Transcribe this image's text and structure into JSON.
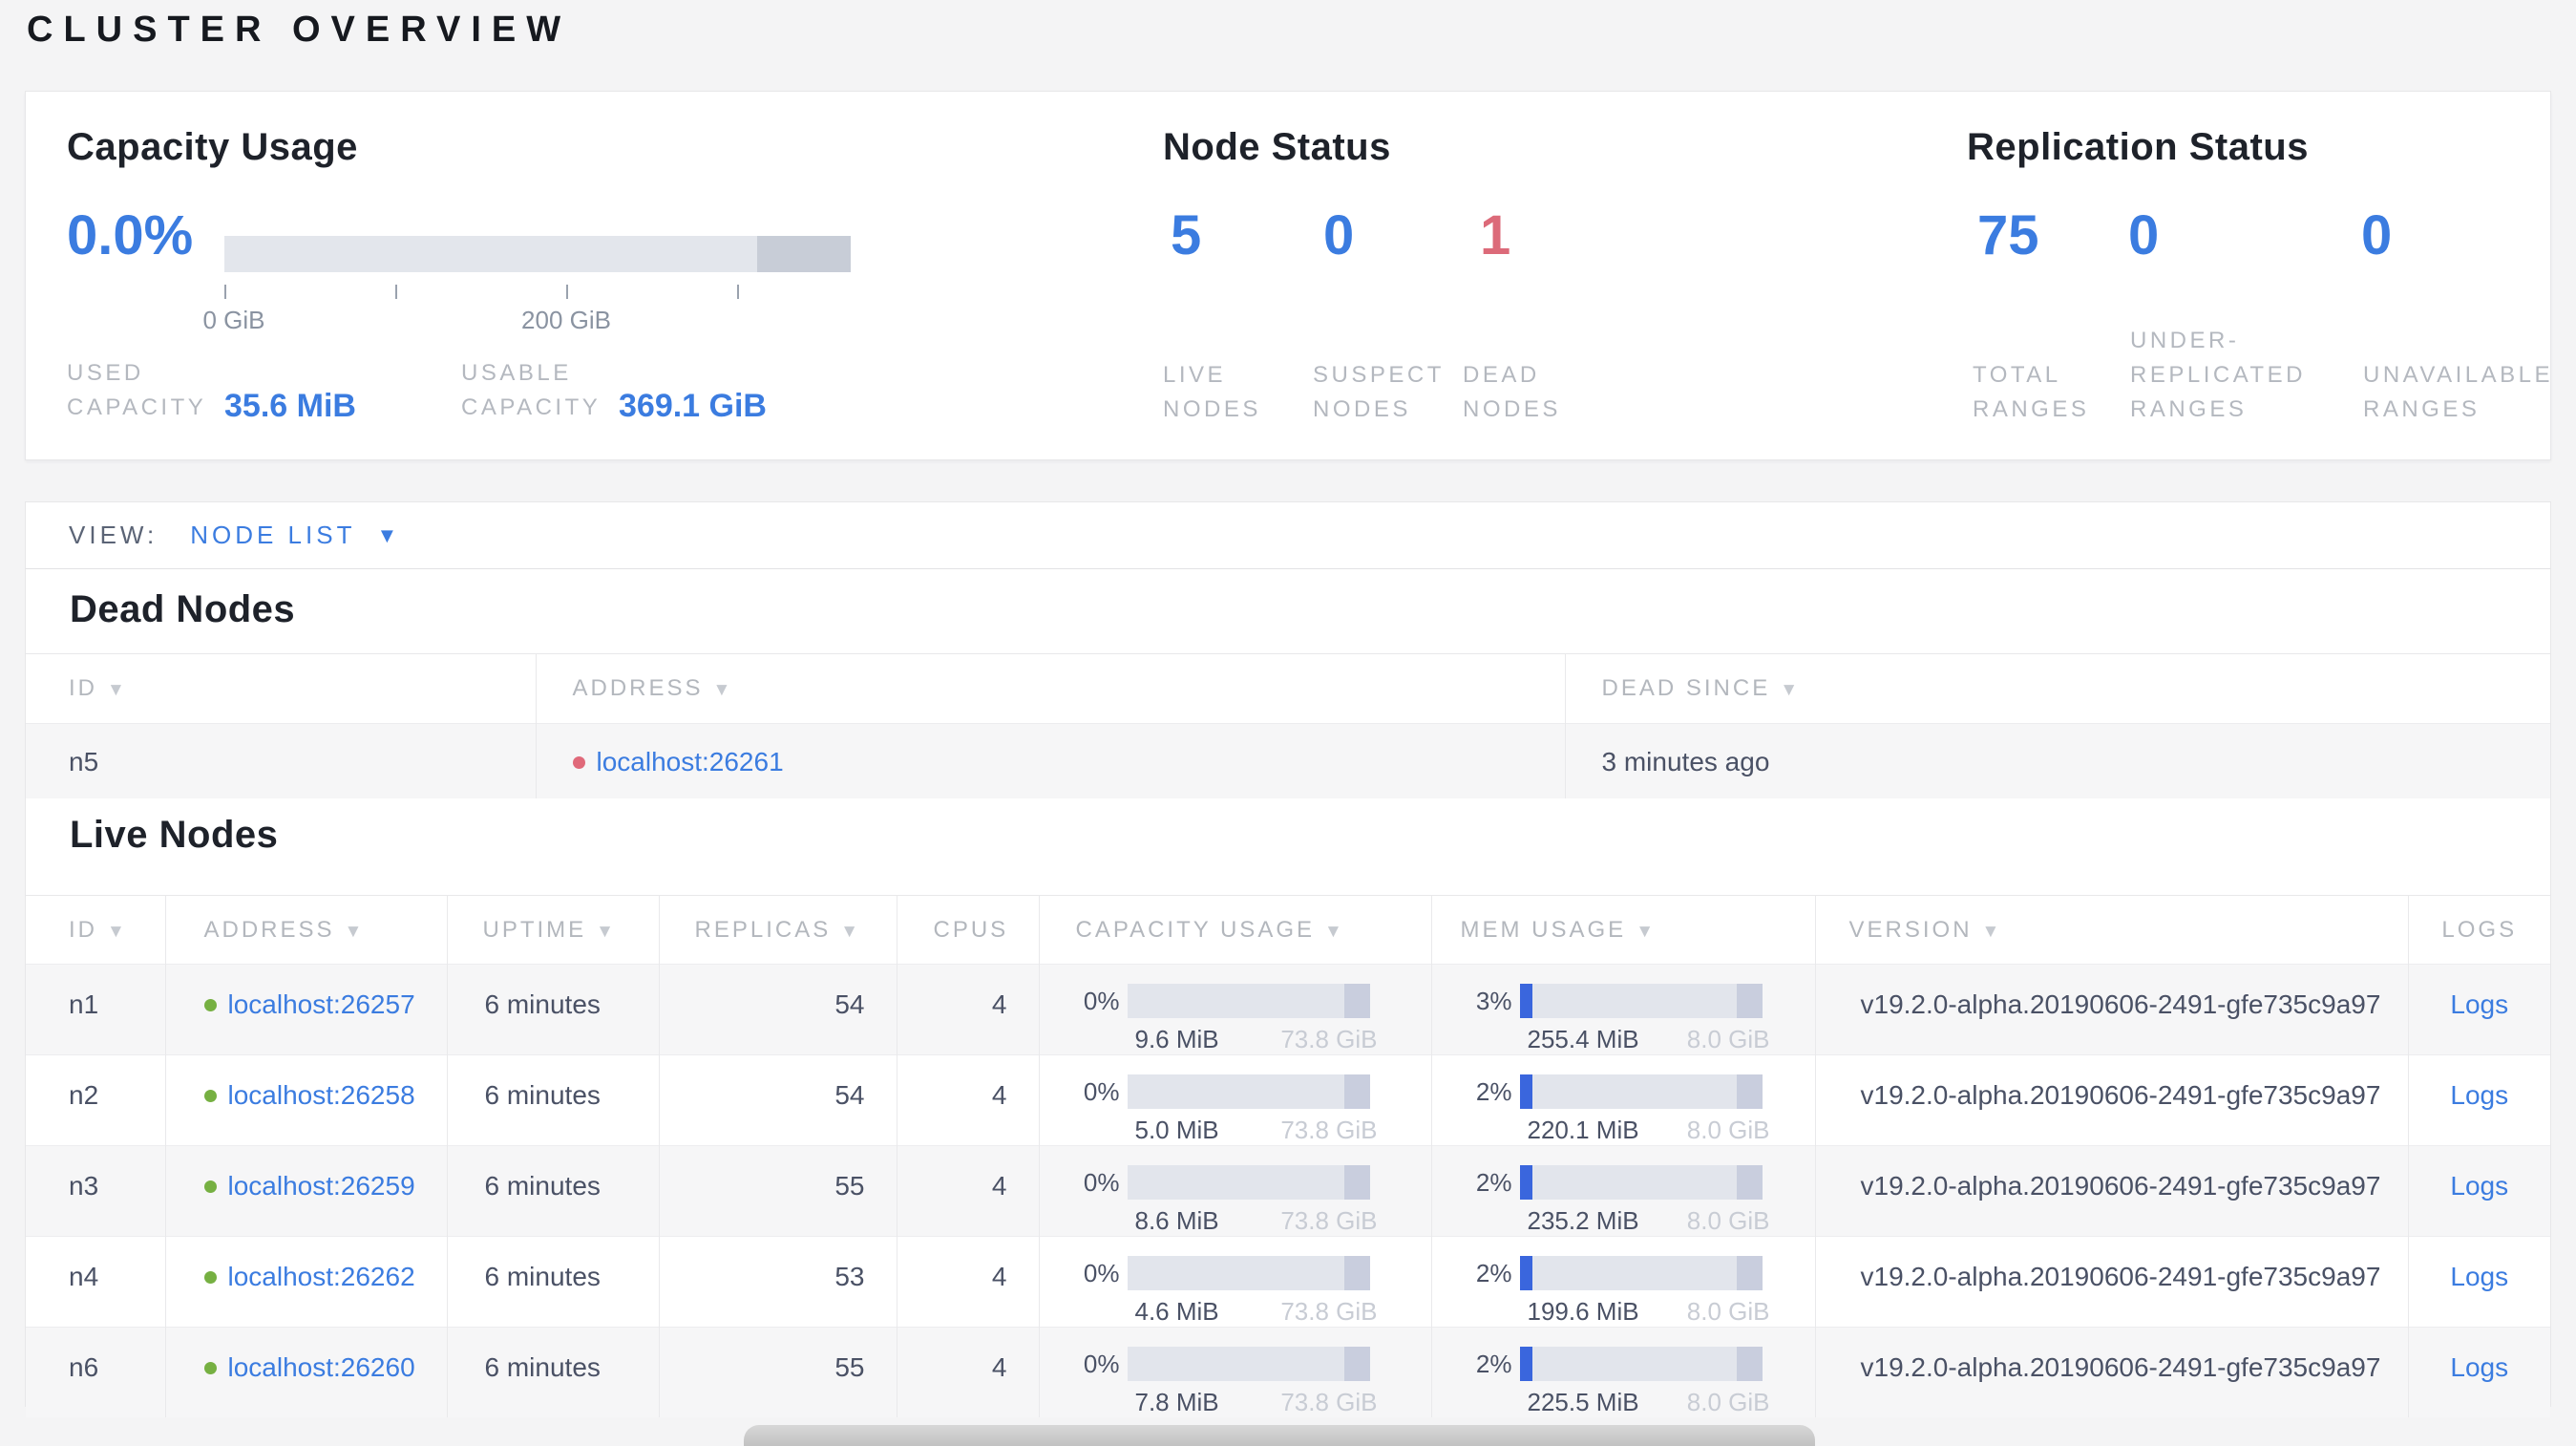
{
  "page": {
    "title": "CLUSTER OVERVIEW"
  },
  "colors": {
    "accent_blue": "#3b7ce0",
    "dead_red": "#dc6a79",
    "live_green": "#76b042",
    "mem_fill_blue": "#3a66dd"
  },
  "overview": {
    "capacity": {
      "heading": "Capacity Usage",
      "percent": "0.0%",
      "axis_ticks": [
        "0 GiB",
        "200 GiB"
      ],
      "used": {
        "lines": [
          "USED",
          "CAPACITY"
        ],
        "value": "35.6 MiB"
      },
      "usable": {
        "lines": [
          "USABLE",
          "CAPACITY"
        ],
        "value": "369.1 GiB"
      }
    },
    "node_status": {
      "heading": "Node Status",
      "items": [
        {
          "value": "5",
          "lines": [
            "LIVE",
            "NODES"
          ]
        },
        {
          "value": "0",
          "lines": [
            "SUSPECT",
            "NODES"
          ]
        },
        {
          "value": "1",
          "lines": [
            "DEAD",
            "NODES"
          ]
        }
      ]
    },
    "replication": {
      "heading": "Replication Status",
      "items": [
        {
          "value": "75",
          "lines": [
            "TOTAL",
            "RANGES"
          ]
        },
        {
          "value": "0",
          "lines": [
            "UNDER-",
            "REPLICATED",
            "RANGES"
          ]
        },
        {
          "value": "0",
          "lines": [
            "UNAVAILABLE",
            "RANGES"
          ]
        }
      ]
    }
  },
  "view_bar": {
    "label": "VIEW:",
    "value": "NODE LIST"
  },
  "dead_nodes": {
    "heading": "Dead Nodes",
    "columns": [
      {
        "label": "ID"
      },
      {
        "label": "ADDRESS"
      },
      {
        "label": "DEAD SINCE"
      }
    ],
    "rows": [
      {
        "id": "n5",
        "address": "localhost:26261",
        "dead_since": "3 minutes ago"
      }
    ]
  },
  "live_nodes": {
    "heading": "Live Nodes",
    "columns": [
      {
        "label": "ID"
      },
      {
        "label": "ADDRESS"
      },
      {
        "label": "UPTIME"
      },
      {
        "label": "REPLICAS"
      },
      {
        "label": "CPUS"
      },
      {
        "label": "CAPACITY USAGE"
      },
      {
        "label": "MEM USAGE"
      },
      {
        "label": "VERSION"
      },
      {
        "label": "LOGS"
      }
    ],
    "rows": [
      {
        "id": "n1",
        "address": "localhost:26257",
        "uptime": "6 minutes",
        "replicas": "54",
        "cpus": "4",
        "capacity": {
          "pct": "0%",
          "pct_num": 0,
          "used": "9.6 MiB",
          "total": "73.8 GiB"
        },
        "memory": {
          "pct": "3%",
          "pct_num": 3,
          "used": "255.4 MiB",
          "total": "8.0 GiB"
        },
        "version": "v19.2.0-alpha.20190606-2491-gfe735c9a97",
        "logs_label": "Logs"
      },
      {
        "id": "n2",
        "address": "localhost:26258",
        "uptime": "6 minutes",
        "replicas": "54",
        "cpus": "4",
        "capacity": {
          "pct": "0%",
          "pct_num": 0,
          "used": "5.0 MiB",
          "total": "73.8 GiB"
        },
        "memory": {
          "pct": "2%",
          "pct_num": 2,
          "used": "220.1 MiB",
          "total": "8.0 GiB"
        },
        "version": "v19.2.0-alpha.20190606-2491-gfe735c9a97",
        "logs_label": "Logs"
      },
      {
        "id": "n3",
        "address": "localhost:26259",
        "uptime": "6 minutes",
        "replicas": "55",
        "cpus": "4",
        "capacity": {
          "pct": "0%",
          "pct_num": 0,
          "used": "8.6 MiB",
          "total": "73.8 GiB"
        },
        "memory": {
          "pct": "2%",
          "pct_num": 2,
          "used": "235.2 MiB",
          "total": "8.0 GiB"
        },
        "version": "v19.2.0-alpha.20190606-2491-gfe735c9a97",
        "logs_label": "Logs"
      },
      {
        "id": "n4",
        "address": "localhost:26262",
        "uptime": "6 minutes",
        "replicas": "53",
        "cpus": "4",
        "capacity": {
          "pct": "0%",
          "pct_num": 0,
          "used": "4.6 MiB",
          "total": "73.8 GiB"
        },
        "memory": {
          "pct": "2%",
          "pct_num": 2,
          "used": "199.6 MiB",
          "total": "8.0 GiB"
        },
        "version": "v19.2.0-alpha.20190606-2491-gfe735c9a97",
        "logs_label": "Logs"
      },
      {
        "id": "n6",
        "address": "localhost:26260",
        "uptime": "6 minutes",
        "replicas": "55",
        "cpus": "4",
        "capacity": {
          "pct": "0%",
          "pct_num": 0,
          "used": "7.8 MiB",
          "total": "73.8 GiB"
        },
        "memory": {
          "pct": "2%",
          "pct_num": 2,
          "used": "225.5 MiB",
          "total": "8.0 GiB"
        },
        "version": "v19.2.0-alpha.20190606-2491-gfe735c9a97",
        "logs_label": "Logs"
      }
    ]
  }
}
